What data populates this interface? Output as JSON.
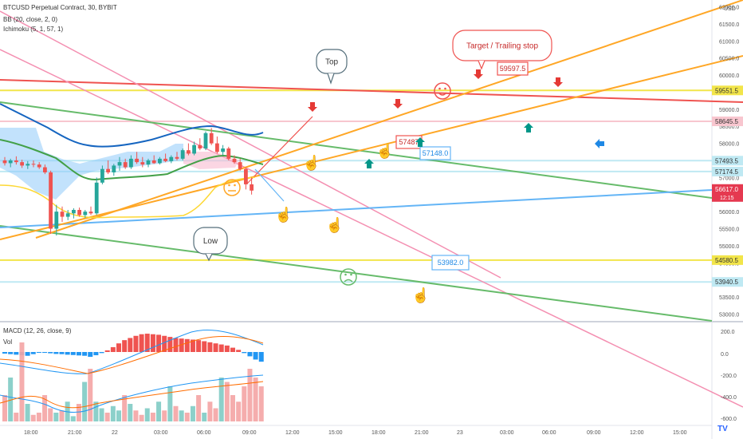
{
  "header": {
    "symbol": "BTCUSD Perpetual Contract, 30, BYBIT",
    "indicators": [
      "BB (20, close, 2, 0)",
      "Ichimoku (5, 1, 57, 1)"
    ]
  },
  "price_axis": {
    "unit": "USD",
    "ticks": [
      "62000.0",
      "61500.0",
      "61000.0",
      "60500.0",
      "60000.0",
      "59500.0",
      "59000.0",
      "58500.0",
      "58000.0",
      "57500.0",
      "57000.0",
      "56000.0",
      "55500.0",
      "55000.0",
      "54500.0",
      "54000.0",
      "53500.0",
      "53000.0"
    ],
    "labels": [
      {
        "text": "59551.5",
        "color": "#f2e54a",
        "text_color": "#333333"
      },
      {
        "text": "58645.5",
        "color": "#f8c6cf",
        "text_color": "#333333"
      },
      {
        "text": "57493.5",
        "color": "#bfe9f3",
        "text_color": "#333333"
      },
      {
        "text": "57174.5",
        "color": "#bfe9f3",
        "text_color": "#333333"
      },
      {
        "text": "54580.5",
        "color": "#f2e54a",
        "text_color": "#333333"
      },
      {
        "text": "53940.5",
        "color": "#bfe9f3",
        "text_color": "#333333"
      }
    ],
    "last_price": {
      "text": "56617.0",
      "countdown": "12:15",
      "color": "#e53950"
    }
  },
  "time_axis": {
    "ticks": [
      "18:00",
      "21:00",
      "22",
      "03:00",
      "06:00",
      "09:00",
      "12:00",
      "15:00",
      "18:00",
      "21:00",
      "23",
      "03:00",
      "06:00",
      "09:00",
      "12:00",
      "15:00"
    ]
  },
  "annotations": {
    "top": "Top",
    "low": "Low",
    "target": "Target / Trailing stop",
    "price_59597": "59597.5",
    "price_57487": "57487",
    "price_57148": "57148.0",
    "price_53982": "53982.0"
  },
  "sub_panel": {
    "label": "MACD (12, 26, close, 9)",
    "vol_label": "Vol",
    "ticks": [
      "200.0",
      "0.0",
      "-200.0",
      "-400.0",
      "-600.0"
    ]
  },
  "chart_data": {
    "type": "candlestick",
    "unit": "USD",
    "price_range": [
      52800,
      62200
    ],
    "candles": [
      [
        57500,
        57600,
        57350,
        57420
      ],
      [
        57420,
        57550,
        57300,
        57500
      ],
      [
        57500,
        57620,
        57380,
        57450
      ],
      [
        57450,
        57520,
        57280,
        57350
      ],
      [
        57350,
        57480,
        57250,
        57400
      ],
      [
        57400,
        57500,
        57300,
        57380
      ],
      [
        57380,
        57450,
        57250,
        57300
      ],
      [
        57300,
        57380,
        57100,
        57150
      ],
      [
        57150,
        57200,
        55350,
        55500
      ],
      [
        55500,
        56200,
        55300,
        56000
      ],
      [
        56000,
        56150,
        55700,
        55850
      ],
      [
        55850,
        56050,
        55750,
        55950
      ],
      [
        55950,
        56100,
        55800,
        56050
      ],
      [
        56050,
        56120,
        55850,
        55900
      ],
      [
        55900,
        56050,
        55820,
        56000
      ],
      [
        56000,
        56150,
        55900,
        55950
      ],
      [
        55950,
        57000,
        55900,
        56850
      ],
      [
        56850,
        57350,
        56800,
        57250
      ],
      [
        57250,
        57500,
        57100,
        57150
      ],
      [
        57150,
        57400,
        57050,
        57350
      ],
      [
        57350,
        57600,
        57200,
        57450
      ],
      [
        57450,
        57550,
        57250,
        57300
      ],
      [
        57300,
        57650,
        57250,
        57550
      ],
      [
        57550,
        57750,
        57400,
        57450
      ],
      [
        57450,
        57600,
        57300,
        57380
      ],
      [
        57380,
        57550,
        57300,
        57500
      ],
      [
        57500,
        57650,
        57400,
        57420
      ],
      [
        57420,
        57600,
        57380,
        57550
      ],
      [
        57550,
        57700,
        57450,
        57480
      ],
      [
        57480,
        57650,
        57420,
        57600
      ],
      [
        57600,
        57750,
        57500,
        57550
      ],
      [
        57550,
        57850,
        57500,
        57800
      ],
      [
        57800,
        58000,
        57650,
        57700
      ],
      [
        57700,
        58050,
        57650,
        57950
      ],
      [
        57950,
        58150,
        57800,
        57850
      ],
      [
        57850,
        58350,
        57800,
        58300
      ],
      [
        58300,
        58450,
        57950,
        58000
      ],
      [
        58000,
        58200,
        57700,
        57750
      ],
      [
        57750,
        57950,
        57650,
        57850
      ],
      [
        57850,
        57900,
        57500,
        57550
      ],
      [
        57550,
        57650,
        57400,
        57450
      ],
      [
        57450,
        57550,
        57200,
        57250
      ],
      [
        57250,
        57300,
        56650,
        56800
      ],
      [
        56800,
        57000,
        56500,
        56617
      ]
    ],
    "horizontal_levels": [
      {
        "price": 59551.5,
        "color": "#f2e54a"
      },
      {
        "price": 58645.5,
        "color": "#f8c6cf"
      },
      {
        "price": 57493.5,
        "color": "#bfe9f3"
      },
      {
        "price": 57174.5,
        "color": "#bfe9f3"
      },
      {
        "price": 54580.5,
        "color": "#f2e54a"
      },
      {
        "price": 53940.5,
        "color": "#bfe9f3"
      }
    ],
    "trendline_colors": {
      "red": "#ef5350",
      "orange": "#ffa726",
      "green": "#66bb6a",
      "blue": "#64b5f6",
      "pink": "#f48fb1"
    },
    "macd_histogram": [
      -15,
      -20,
      -25,
      -30,
      -35,
      -20,
      -5,
      -8,
      -12,
      -18,
      -20,
      -25,
      -28,
      -32,
      -35,
      -45,
      -30,
      -10,
      15,
      45,
      80,
      110,
      130,
      150,
      165,
      170,
      165,
      160,
      150,
      140,
      130,
      125,
      120,
      115,
      110,
      100,
      90,
      80,
      70,
      60,
      40,
      20,
      -10,
      -40,
      -70,
      -90
    ],
    "volume": [
      60,
      100,
      20,
      180,
      40,
      15,
      20,
      60,
      30,
      20,
      25,
      45,
      12,
      40,
      90,
      120,
      45,
      30,
      20,
      35,
      25,
      60,
      40,
      25,
      15,
      30,
      20,
      45,
      25,
      80,
      35,
      25,
      20,
      35,
      60,
      20,
      45,
      30,
      100,
      90,
      60,
      45,
      80,
      120,
      100,
      80
    ],
    "bar_colors": {
      "up": "#26a69a",
      "down": "#ef5350",
      "macd_up": "#ef5350",
      "macd_down": "#2196f3",
      "vol_up": "#80cbc4",
      "vol_down": "#f4a4a4"
    }
  }
}
